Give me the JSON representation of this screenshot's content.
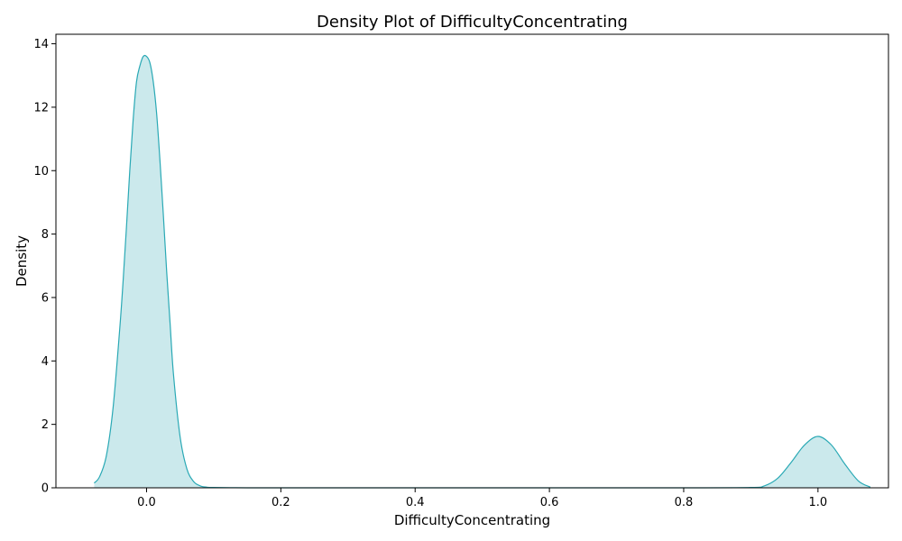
{
  "chart_data": {
    "type": "area",
    "title": "Density Plot of DifficultyConcentrating",
    "xlabel": "DifficultyConcentrating",
    "ylabel": "Density",
    "xlim": [
      -0.135,
      1.105
    ],
    "ylim": [
      0,
      14.3
    ],
    "xticks": [
      0.0,
      0.2,
      0.4,
      0.6,
      0.8,
      1.0
    ],
    "xtick_labels": [
      "0.0",
      "0.2",
      "0.4",
      "0.6",
      "0.8",
      "1.0"
    ],
    "yticks": [
      0,
      2,
      4,
      6,
      8,
      10,
      12,
      14
    ],
    "ytick_labels": [
      "0",
      "2",
      "4",
      "6",
      "8",
      "10",
      "12",
      "14"
    ],
    "grid": false,
    "legend": "none",
    "colors": {
      "line": "#2aa9b5",
      "fill": "#cbe9ec"
    },
    "series": [
      {
        "x": [
          -0.078,
          -0.07,
          -0.06,
          -0.05,
          -0.04,
          -0.035,
          -0.03,
          -0.025,
          -0.02,
          -0.015,
          -0.01,
          -0.005,
          0.0,
          0.005,
          0.01,
          0.015,
          0.02,
          0.025,
          0.03,
          0.035,
          0.04,
          0.05,
          0.06,
          0.07,
          0.08,
          0.09,
          0.1,
          0.15,
          0.2,
          0.3,
          0.4,
          0.5,
          0.6,
          0.7,
          0.8,
          0.9,
          0.92,
          0.94,
          0.96,
          0.98,
          1.0,
          1.02,
          1.04,
          1.06,
          1.078
        ],
        "y": [
          0.15,
          0.35,
          1.0,
          2.5,
          5.0,
          6.5,
          8.2,
          10.0,
          11.6,
          12.8,
          13.3,
          13.6,
          13.6,
          13.4,
          12.8,
          11.8,
          10.3,
          8.6,
          6.8,
          5.2,
          3.6,
          1.6,
          0.6,
          0.2,
          0.06,
          0.02,
          0.01,
          0.0,
          0.0,
          0.0,
          0.0,
          0.0,
          0.0,
          0.0,
          0.0,
          0.01,
          0.06,
          0.3,
          0.8,
          1.35,
          1.62,
          1.35,
          0.75,
          0.22,
          0.02
        ]
      }
    ]
  }
}
